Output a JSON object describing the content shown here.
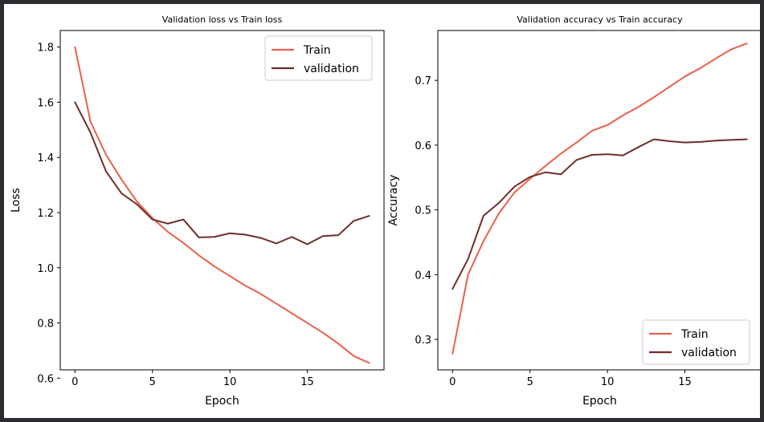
{
  "colors": {
    "train": "#e8604c",
    "validation": "#6e2f29",
    "background": "#2b2d31"
  },
  "chart_data": [
    {
      "type": "line",
      "title": "Validation loss vs Train loss",
      "xlabel": "Epoch",
      "ylabel": "Loss",
      "xlim": [
        -0.95,
        19.95
      ],
      "ylim": [
        0.63,
        1.86
      ],
      "xticks": [
        0,
        5,
        10,
        15
      ],
      "xtick_labels": [
        "0",
        "5",
        "10",
        "15"
      ],
      "yticks": [
        0.6,
        0.8,
        1.0,
        1.2,
        1.4,
        1.6,
        1.8
      ],
      "ytick_labels": [
        "0.6",
        "0.8",
        "1.0",
        "1.2",
        "1.4",
        "1.6",
        "1.8"
      ],
      "legend_position": "top-right",
      "grid": false,
      "x": [
        0,
        1,
        2,
        3,
        4,
        5,
        6,
        7,
        8,
        9,
        10,
        11,
        12,
        13,
        14,
        15,
        16,
        17,
        18,
        19
      ],
      "series": [
        {
          "name": "Train",
          "color": "#e8604c",
          "values": [
            1.8,
            1.53,
            1.41,
            1.32,
            1.24,
            1.18,
            1.13,
            1.09,
            1.045,
            1.005,
            0.97,
            0.935,
            0.905,
            0.87,
            0.835,
            0.8,
            0.765,
            0.725,
            0.68,
            0.655
          ]
        },
        {
          "name": "validation",
          "color": "#6e2f29",
          "values": [
            1.6,
            1.49,
            1.35,
            1.27,
            1.23,
            1.175,
            1.16,
            1.175,
            1.11,
            1.112,
            1.125,
            1.12,
            1.108,
            1.088,
            1.112,
            1.085,
            1.115,
            1.118,
            1.17,
            1.188
          ]
        }
      ]
    },
    {
      "type": "line",
      "title": "Validation accuracy vs Train accuracy",
      "xlabel": "Epoch",
      "ylabel": "Accuracy",
      "xlim": [
        -0.95,
        19.95
      ],
      "ylim": [
        0.253,
        0.777
      ],
      "xticks": [
        0,
        5,
        10,
        15
      ],
      "xtick_labels": [
        "0",
        "5",
        "10",
        "15"
      ],
      "yticks": [
        0.3,
        0.4,
        0.5,
        0.6,
        0.7
      ],
      "ytick_labels": [
        "0.3",
        "0.4",
        "0.5",
        "0.6",
        "0.7"
      ],
      "legend_position": "bottom-right",
      "grid": false,
      "x": [
        0,
        1,
        2,
        3,
        4,
        5,
        6,
        7,
        8,
        9,
        10,
        11,
        12,
        13,
        14,
        15,
        16,
        17,
        18,
        19
      ],
      "series": [
        {
          "name": "Train",
          "color": "#e8604c",
          "values": [
            0.278,
            0.4,
            0.452,
            0.495,
            0.527,
            0.548,
            0.568,
            0.587,
            0.604,
            0.622,
            0.631,
            0.646,
            0.659,
            0.674,
            0.69,
            0.706,
            0.719,
            0.734,
            0.748,
            0.757
          ]
        },
        {
          "name": "validation",
          "color": "#6e2f29",
          "values": [
            0.378,
            0.424,
            0.491,
            0.511,
            0.536,
            0.551,
            0.558,
            0.555,
            0.577,
            0.585,
            0.586,
            0.584,
            0.597,
            0.609,
            0.606,
            0.604,
            0.605,
            0.607,
            0.608,
            0.609
          ]
        }
      ]
    }
  ]
}
